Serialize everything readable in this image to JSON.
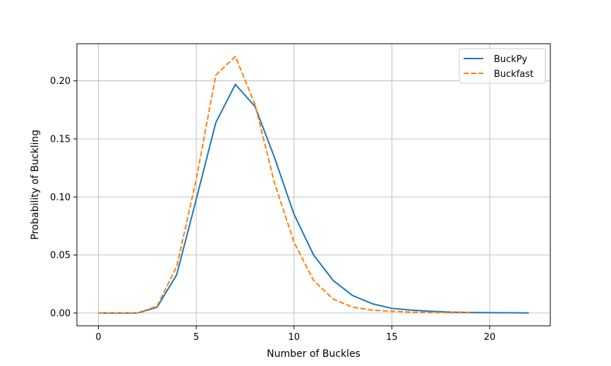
{
  "chart_data": {
    "type": "line",
    "title": "",
    "xlabel": "Number of Buckles",
    "ylabel": "Probability of Buckling",
    "xlim": [
      -1.1,
      23.1
    ],
    "ylim": [
      -0.011,
      0.232
    ],
    "xticks": [
      0,
      5,
      10,
      15,
      20
    ],
    "xtick_labels": [
      "0",
      "5",
      "10",
      "15",
      "20"
    ],
    "yticks": [
      0.0,
      0.05,
      0.1,
      0.15,
      0.2
    ],
    "ytick_labels": [
      "0.00",
      "0.05",
      "0.10",
      "0.15",
      "0.20"
    ],
    "grid": true,
    "legend_position": "top-right",
    "series": [
      {
        "name": "BuckPy",
        "color": "#1f77b4",
        "dash": "solid",
        "x": [
          0,
          1,
          2,
          3,
          4,
          5,
          6,
          7,
          8,
          9,
          10,
          11,
          12,
          13,
          14,
          15,
          16,
          17,
          18,
          19,
          20,
          21,
          22
        ],
        "y": [
          0.0,
          0.0,
          0.0,
          0.005,
          0.033,
          0.098,
          0.164,
          0.197,
          0.178,
          0.134,
          0.085,
          0.05,
          0.028,
          0.015,
          0.008,
          0.004,
          0.0025,
          0.0015,
          0.0008,
          0.0005,
          0.0003,
          0.0002,
          0.0001
        ]
      },
      {
        "name": "Buckfast",
        "color": "#ff7f0e",
        "dash": "dashed",
        "x": [
          0,
          1,
          2,
          3,
          4,
          5,
          6,
          7,
          8,
          9,
          10,
          11,
          12,
          13,
          14,
          15,
          16,
          17,
          18,
          19
        ],
        "y": [
          0.0,
          0.0,
          0.0,
          0.006,
          0.04,
          0.115,
          0.205,
          0.221,
          0.18,
          0.112,
          0.061,
          0.028,
          0.012,
          0.005,
          0.0025,
          0.0015,
          0.0008,
          0.0005,
          0.0003,
          0.0002
        ]
      }
    ]
  }
}
